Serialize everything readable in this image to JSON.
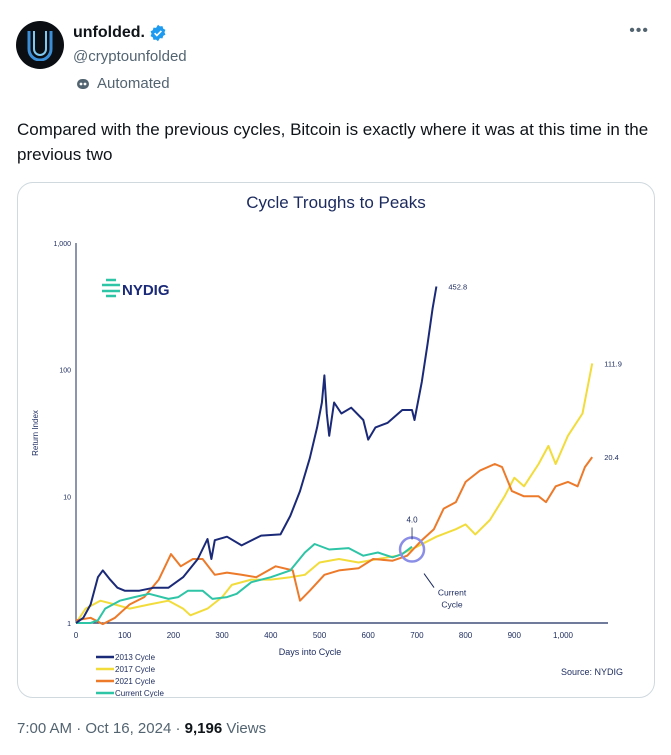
{
  "tweet": {
    "display_name": "unfolded.",
    "handle": "@cryptounfolded",
    "label": "Automated",
    "more_icon": "more-horizontal-icon",
    "verified_icon": "verified-badge-icon",
    "text": "Compared with the previous cycles, Bitcoin is exactly where it was at this time in the previous two",
    "time": "7:00 AM",
    "date": "Oct 16, 2024",
    "views_count": "9,196",
    "views_label": "Views",
    "separator": "·"
  },
  "chart_data": {
    "type": "line",
    "title": "Cycle Troughs to Peaks",
    "xlabel": "Days into Cycle",
    "ylabel": "Return Index",
    "xlim": [
      0,
      1070
    ],
    "ylim": [
      1,
      1000
    ],
    "yscale": "log",
    "x_ticks": [
      "0",
      "100",
      "200",
      "300",
      "400",
      "500",
      "600",
      "700",
      "800",
      "900",
      "1,000"
    ],
    "y_ticks": [
      "1",
      "10",
      "100",
      "1,000"
    ],
    "logo": "NYDIG",
    "source": "Source: NYDIG",
    "legend_placement": "bottom-left",
    "annotations": {
      "current_value": "4.0",
      "current_label_1": "Current",
      "current_label_2": "Cycle"
    },
    "series": [
      {
        "name": "2013 Cycle",
        "color": "#1b2a78",
        "end_label": "452.8",
        "points": [
          [
            0,
            1
          ],
          [
            15,
            1.1
          ],
          [
            30,
            1.4
          ],
          [
            45,
            2.3
          ],
          [
            55,
            2.6
          ],
          [
            70,
            2.2
          ],
          [
            85,
            1.9
          ],
          [
            100,
            1.8
          ],
          [
            130,
            1.8
          ],
          [
            160,
            1.9
          ],
          [
            190,
            1.9
          ],
          [
            220,
            2.3
          ],
          [
            250,
            3.2
          ],
          [
            270,
            4.6
          ],
          [
            278,
            3.2
          ],
          [
            285,
            4.5
          ],
          [
            310,
            4.8
          ],
          [
            340,
            4.1
          ],
          [
            380,
            4.9
          ],
          [
            420,
            5.0
          ],
          [
            440,
            7
          ],
          [
            460,
            11
          ],
          [
            480,
            20
          ],
          [
            495,
            35
          ],
          [
            505,
            55
          ],
          [
            510,
            90
          ],
          [
            515,
            45
          ],
          [
            520,
            30
          ],
          [
            530,
            55
          ],
          [
            545,
            45
          ],
          [
            565,
            50
          ],
          [
            590,
            40
          ],
          [
            600,
            28
          ],
          [
            615,
            35
          ],
          [
            640,
            38
          ],
          [
            670,
            48
          ],
          [
            690,
            48
          ],
          [
            695,
            40
          ],
          [
            710,
            80
          ],
          [
            722,
            160
          ],
          [
            732,
            300
          ],
          [
            740,
            452.8
          ]
        ]
      },
      {
        "name": "2017 Cycle",
        "color": "#f2dc3c",
        "end_label": "111.9",
        "points": [
          [
            0,
            1
          ],
          [
            20,
            1.3
          ],
          [
            50,
            1.5
          ],
          [
            80,
            1.4
          ],
          [
            110,
            1.3
          ],
          [
            150,
            1.4
          ],
          [
            190,
            1.5
          ],
          [
            220,
            1.3
          ],
          [
            235,
            1.15
          ],
          [
            270,
            1.3
          ],
          [
            300,
            1.6
          ],
          [
            320,
            2
          ],
          [
            360,
            2.2
          ],
          [
            400,
            2.2
          ],
          [
            440,
            2.3
          ],
          [
            470,
            2.4
          ],
          [
            500,
            3.0
          ],
          [
            540,
            3.2
          ],
          [
            580,
            3.0
          ],
          [
            620,
            3.2
          ],
          [
            660,
            3.4
          ],
          [
            700,
            4.0
          ],
          [
            740,
            4.8
          ],
          [
            780,
            5.5
          ],
          [
            800,
            6
          ],
          [
            820,
            5
          ],
          [
            850,
            6.5
          ],
          [
            880,
            10
          ],
          [
            900,
            14
          ],
          [
            920,
            12
          ],
          [
            950,
            18
          ],
          [
            970,
            25
          ],
          [
            985,
            18
          ],
          [
            1010,
            30
          ],
          [
            1040,
            45
          ],
          [
            1060,
            111.9
          ]
        ]
      },
      {
        "name": "2021 Cycle",
        "color": "#ec7a2a",
        "end_label": "20.4",
        "points": [
          [
            0,
            1.05
          ],
          [
            30,
            1.1
          ],
          [
            55,
            0.98
          ],
          [
            80,
            1.1
          ],
          [
            110,
            1.4
          ],
          [
            140,
            1.6
          ],
          [
            170,
            2.2
          ],
          [
            195,
            3.5
          ],
          [
            215,
            2.8
          ],
          [
            240,
            3.2
          ],
          [
            260,
            3.2
          ],
          [
            285,
            2.4
          ],
          [
            310,
            2.5
          ],
          [
            340,
            2.4
          ],
          [
            370,
            2.3
          ],
          [
            410,
            2.8
          ],
          [
            445,
            2.6
          ],
          [
            460,
            1.5
          ],
          [
            480,
            1.8
          ],
          [
            510,
            2.4
          ],
          [
            540,
            2.6
          ],
          [
            580,
            2.7
          ],
          [
            610,
            3.2
          ],
          [
            650,
            3.1
          ],
          [
            680,
            3.4
          ],
          [
            710,
            4.5
          ],
          [
            735,
            5.5
          ],
          [
            755,
            8
          ],
          [
            780,
            9
          ],
          [
            800,
            13
          ],
          [
            830,
            16
          ],
          [
            860,
            18
          ],
          [
            875,
            17
          ],
          [
            895,
            11
          ],
          [
            920,
            10
          ],
          [
            950,
            10
          ],
          [
            965,
            9
          ],
          [
            985,
            12
          ],
          [
            1010,
            13
          ],
          [
            1030,
            12
          ],
          [
            1045,
            17
          ],
          [
            1060,
            20.4
          ]
        ]
      },
      {
        "name": "Current Cycle",
        "color": "#2ec4a6",
        "points": [
          [
            0,
            1
          ],
          [
            30,
            1
          ],
          [
            45,
            1.05
          ],
          [
            60,
            1.3
          ],
          [
            90,
            1.5
          ],
          [
            120,
            1.6
          ],
          [
            150,
            1.7
          ],
          [
            190,
            1.55
          ],
          [
            210,
            1.6
          ],
          [
            230,
            1.8
          ],
          [
            260,
            1.8
          ],
          [
            280,
            1.55
          ],
          [
            310,
            1.6
          ],
          [
            330,
            1.7
          ],
          [
            360,
            2.1
          ],
          [
            400,
            2.3
          ],
          [
            440,
            2.6
          ],
          [
            470,
            3.6
          ],
          [
            490,
            4.2
          ],
          [
            520,
            3.8
          ],
          [
            560,
            3.9
          ],
          [
            590,
            3.4
          ],
          [
            620,
            3.6
          ],
          [
            650,
            3.3
          ],
          [
            670,
            3.5
          ],
          [
            690,
            4.0
          ]
        ]
      }
    ]
  }
}
